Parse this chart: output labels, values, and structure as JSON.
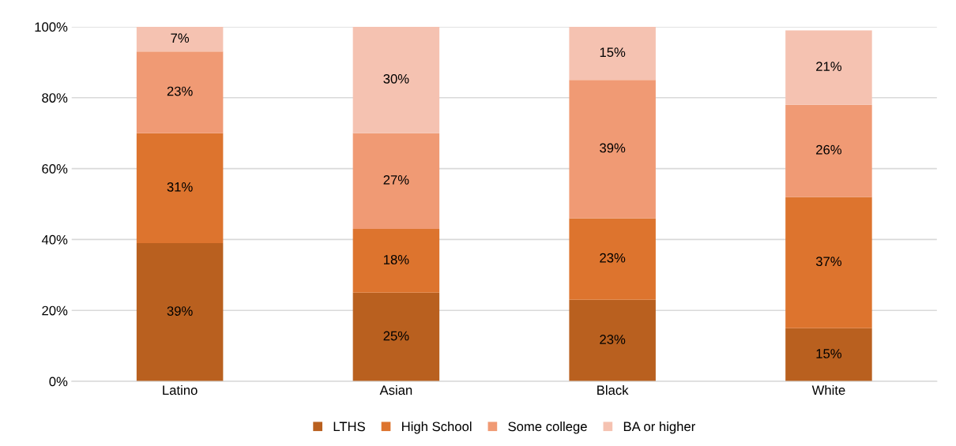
{
  "chart_data": {
    "type": "bar",
    "stacked": true,
    "categories": [
      "Latino",
      "Asian",
      "Black",
      "White"
    ],
    "series": [
      {
        "name": "LTHS",
        "color": "#b9601f",
        "values": [
          39,
          25,
          23,
          15
        ],
        "value_labels": [
          "39%",
          "25%",
          "23%",
          "15%"
        ]
      },
      {
        "name": "High School",
        "color": "#dd742e",
        "values": [
          31,
          18,
          23,
          37
        ],
        "value_labels": [
          "31%",
          "18%",
          "23%",
          "37%"
        ]
      },
      {
        "name": "Some college",
        "color": "#f09a74",
        "values": [
          23,
          27,
          39,
          26
        ],
        "value_labels": [
          "23%",
          "27%",
          "39%",
          "26%"
        ]
      },
      {
        "name": "BA or higher",
        "color": "#f5c2b1",
        "values": [
          7,
          30,
          15,
          21
        ],
        "value_labels": [
          "7%",
          "30%",
          "15%",
          "21%"
        ]
      }
    ],
    "ylim": [
      0,
      100
    ],
    "yticks": [
      {
        "value": 0,
        "label": "0%"
      },
      {
        "value": 20,
        "label": "20%"
      },
      {
        "value": 40,
        "label": "40%"
      },
      {
        "value": 60,
        "label": "60%"
      },
      {
        "value": 80,
        "label": "80%"
      },
      {
        "value": 100,
        "label": "100%"
      }
    ],
    "grid": "y",
    "legend": "bottom"
  }
}
